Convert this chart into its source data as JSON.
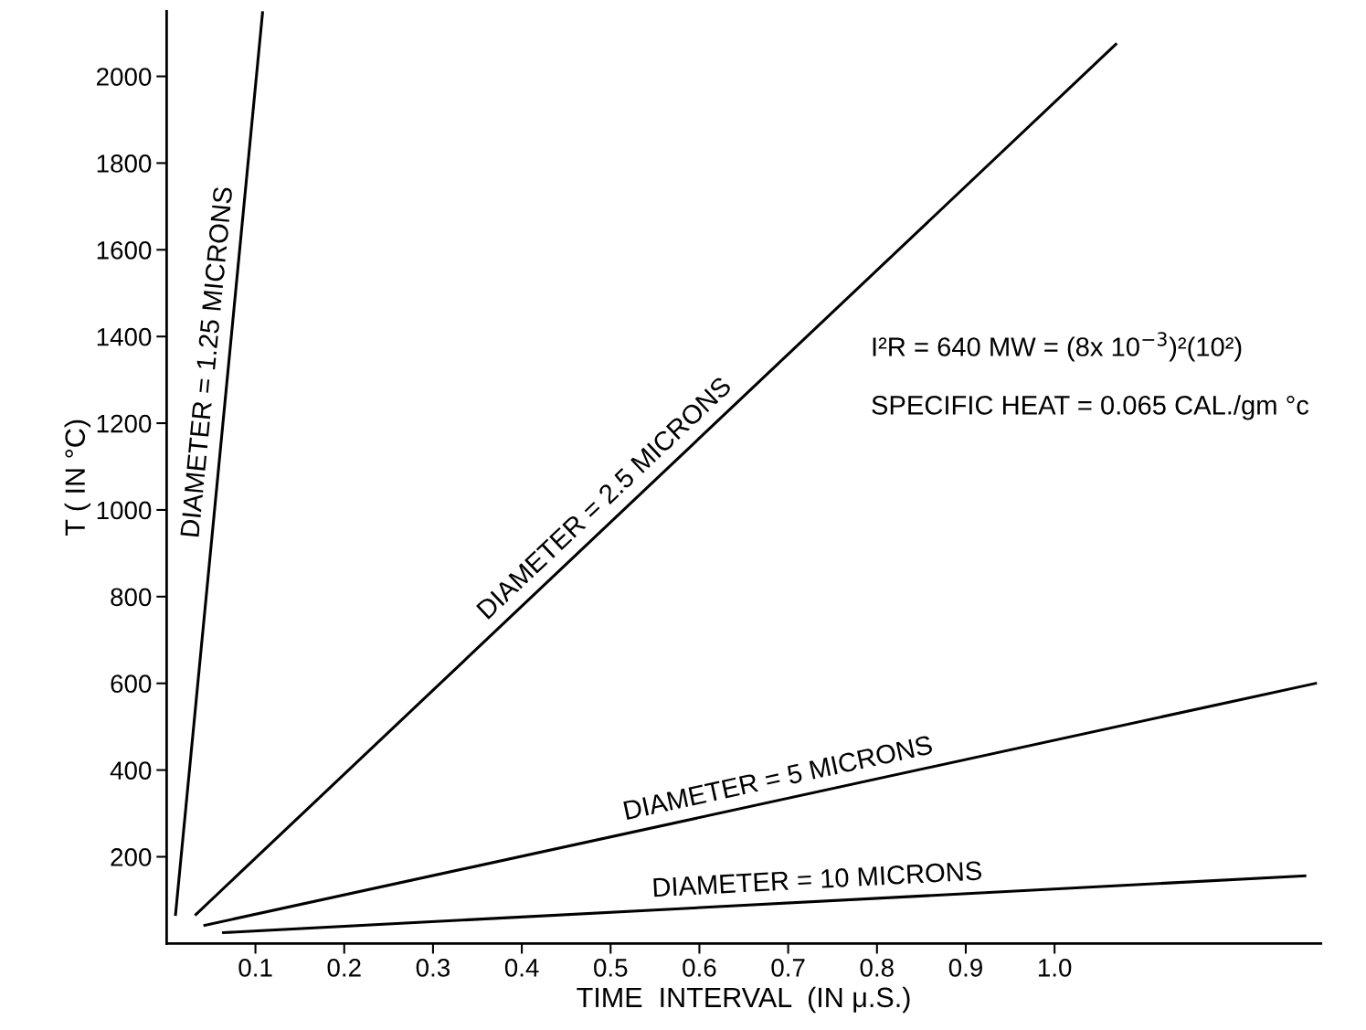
{
  "chart_data": {
    "type": "line",
    "xlabel": "TIME  INTERVAL  (IN μ.S.)",
    "ylabel": "T ( IN °C)",
    "xlim": [
      0,
      1.3
    ],
    "ylim": [
      0,
      2150
    ],
    "xticks": [
      0.1,
      0.2,
      0.3,
      0.4,
      0.5,
      0.6,
      0.7,
      0.8,
      0.9,
      {
        "value": 1,
        "label": "1.0"
      }
    ],
    "yticks": [
      200,
      400,
      600,
      800,
      1000,
      1200,
      1400,
      1600,
      1800,
      2000
    ],
    "grid": false,
    "legend": false,
    "marker": "none",
    "line_style": "solid",
    "series": [
      {
        "name": "DIAMETER = 1.25 MICRONS",
        "color": "#000000",
        "x": [
          0.01,
          0.108
        ],
        "values": [
          67,
          2147
        ]
      },
      {
        "name": "DIAMETER = 2.5 MICRONS",
        "color": "#000000",
        "x": [
          0.033,
          1.069
        ],
        "values": [
          67,
          2074
        ]
      },
      {
        "name": "DIAMETER = 5 MICRONS",
        "color": "#000000",
        "x": [
          0.043,
          1.294
        ],
        "values": [
          42,
          600
        ]
      },
      {
        "name": "DIAMETER = 10 MICRONS",
        "color": "#000000",
        "x": [
          0.064,
          1.282
        ],
        "values": [
          25,
          156
        ]
      }
    ],
    "annotations": [
      "I²R = 640 MW = (8x 10$^{−3}$)²(10²)",
      "SPECIFIC HEAT = 0.065 CAL./gm °c"
    ]
  }
}
